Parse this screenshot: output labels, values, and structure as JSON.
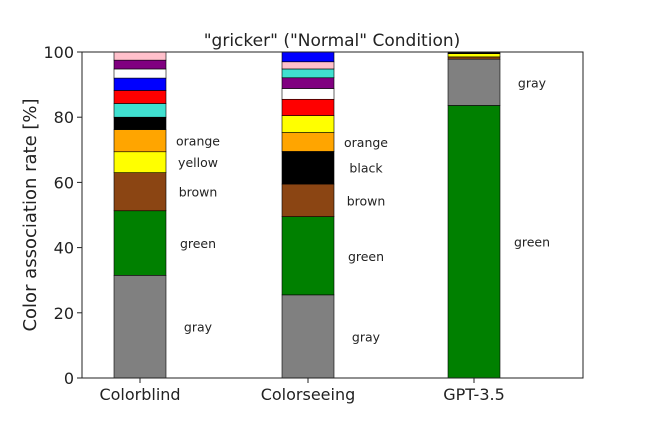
{
  "chart_data": {
    "type": "bar",
    "stacked": true,
    "title": "\"gricker\" (\"Normal\" Condition)",
    "xlabel": "",
    "ylabel": "Color association rate [%]",
    "ylim": [
      0,
      100
    ],
    "yticks": [
      0,
      20,
      40,
      60,
      80,
      100
    ],
    "grid": false,
    "categories": [
      "Colorblind",
      "Colorseeing",
      "GPT-3.5"
    ],
    "bars": [
      {
        "category": "Colorblind",
        "segments": [
          {
            "color": "gray",
            "fill": "#808080",
            "value": 31.5,
            "label": "gray"
          },
          {
            "color": "green",
            "fill": "#008000",
            "value": 19.8,
            "label": "green"
          },
          {
            "color": "brown",
            "fill": "#8B4513",
            "value": 11.7,
            "label": "brown"
          },
          {
            "color": "yellow",
            "fill": "#FFFF00",
            "value": 6.4,
            "label": "yellow"
          },
          {
            "color": "orange",
            "fill": "#FFA500",
            "value": 6.8,
            "label": "orange"
          },
          {
            "color": "black",
            "fill": "#000000",
            "value": 3.8,
            "label": ""
          },
          {
            "color": "turquoise",
            "fill": "#40E0D0",
            "value": 4.2,
            "label": ""
          },
          {
            "color": "red",
            "fill": "#FF0000",
            "value": 4.0,
            "label": ""
          },
          {
            "color": "blue",
            "fill": "#0000FF",
            "value": 3.8,
            "label": ""
          },
          {
            "color": "white",
            "fill": "#FFFFFF",
            "value": 2.8,
            "label": ""
          },
          {
            "color": "purple",
            "fill": "#800080",
            "value": 2.7,
            "label": ""
          },
          {
            "color": "pink",
            "fill": "#FFC0CB",
            "value": 2.5,
            "label": ""
          }
        ]
      },
      {
        "category": "Colorseeing",
        "segments": [
          {
            "color": "gray",
            "fill": "#808080",
            "value": 25.5,
            "label": "gray"
          },
          {
            "color": "green",
            "fill": "#008000",
            "value": 24.0,
            "label": "green"
          },
          {
            "color": "brown",
            "fill": "#8B4513",
            "value": 10.0,
            "label": "brown"
          },
          {
            "color": "black",
            "fill": "#000000",
            "value": 10.0,
            "label": "black"
          },
          {
            "color": "orange",
            "fill": "#FFA500",
            "value": 5.8,
            "label": "orange"
          },
          {
            "color": "yellow",
            "fill": "#FFFF00",
            "value": 5.2,
            "label": ""
          },
          {
            "color": "red",
            "fill": "#FF0000",
            "value": 5.0,
            "label": ""
          },
          {
            "color": "white",
            "fill": "#FFFFFF",
            "value": 3.3,
            "label": ""
          },
          {
            "color": "purple",
            "fill": "#800080",
            "value": 3.3,
            "label": ""
          },
          {
            "color": "turquoise",
            "fill": "#40E0D0",
            "value": 2.7,
            "label": ""
          },
          {
            "color": "pink",
            "fill": "#FFC0CB",
            "value": 2.2,
            "label": ""
          },
          {
            "color": "blue",
            "fill": "#0000FF",
            "value": 3.0,
            "label": ""
          }
        ]
      },
      {
        "category": "GPT-3.5",
        "segments": [
          {
            "color": "green",
            "fill": "#008000",
            "value": 83.6,
            "label": "green"
          },
          {
            "color": "gray",
            "fill": "#808080",
            "value": 14.2,
            "label": "gray"
          },
          {
            "color": "brown",
            "fill": "#8B4513",
            "value": 0.7,
            "label": ""
          },
          {
            "color": "yellow",
            "fill": "#FFFF00",
            "value": 1.0,
            "label": ""
          },
          {
            "color": "black",
            "fill": "#000000",
            "value": 0.5,
            "label": ""
          }
        ]
      }
    ]
  }
}
